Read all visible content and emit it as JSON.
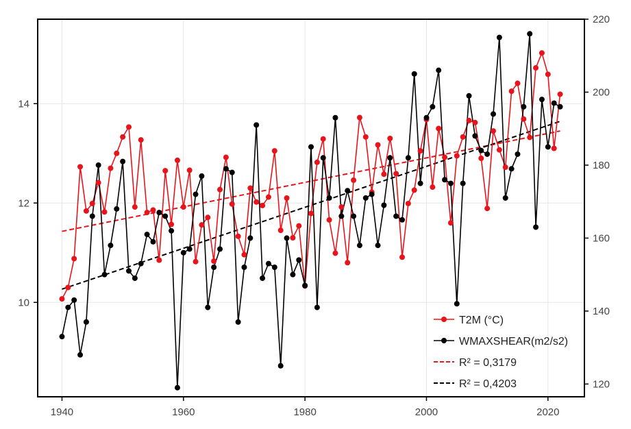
{
  "chart_data": {
    "type": "line",
    "title": "",
    "xlabel": "",
    "ylabel_left": "",
    "ylabel_right": "",
    "xlim": [
      1936,
      2026
    ],
    "ylim_left": [
      8.1,
      15.7
    ],
    "ylim_right": [
      116.5,
      220
    ],
    "x_ticks": [
      "1940",
      "1960",
      "1980",
      "2000",
      "2020"
    ],
    "y_left_ticks": [
      "10",
      "12",
      "14"
    ],
    "y_right_ticks": [
      "120",
      "140",
      "160",
      "180",
      "200",
      "220"
    ],
    "grid": true,
    "legend_position": "bottom-right",
    "series": [
      {
        "name": "T2M (°C)",
        "axis": "left",
        "color": "#e8141b",
        "x": [
          1940,
          1941,
          1942,
          1943,
          1944,
          1945,
          1946,
          1947,
          1948,
          1949,
          1950,
          1951,
          1952,
          1953,
          1954,
          1955,
          1956,
          1957,
          1958,
          1959,
          1960,
          1961,
          1962,
          1963,
          1964,
          1965,
          1966,
          1967,
          1968,
          1969,
          1970,
          1971,
          1972,
          1973,
          1974,
          1975,
          1976,
          1977,
          1978,
          1979,
          1980,
          1981,
          1982,
          1983,
          1984,
          1985,
          1986,
          1987,
          1988,
          1989,
          1990,
          1991,
          1992,
          1993,
          1994,
          1995,
          1996,
          1997,
          1998,
          1999,
          2000,
          2001,
          2002,
          2003,
          2004,
          2005,
          2006,
          2007,
          2008,
          2009,
          2010,
          2011,
          2012,
          2013,
          2014,
          2015,
          2016,
          2017,
          2018,
          2019,
          2020,
          2021,
          2022
        ],
        "values": [
          10.07,
          10.3,
          10.88,
          12.73,
          11.84,
          11.99,
          12.41,
          11.82,
          12.7,
          13.0,
          13.33,
          13.53,
          11.92,
          13.27,
          11.81,
          11.86,
          10.85,
          12.65,
          11.57,
          12.86,
          11.92,
          12.66,
          10.82,
          11.56,
          11.71,
          10.83,
          12.27,
          12.92,
          11.98,
          11.33,
          10.96,
          12.3,
          12.02,
          11.95,
          12.12,
          13.05,
          11.45,
          12.1,
          11.3,
          11.54,
          10.33,
          11.79,
          12.82,
          13.29,
          11.66,
          10.99,
          11.92,
          10.8,
          12.46,
          13.72,
          13.33,
          12.22,
          13.17,
          12.58,
          13.3,
          12.59,
          10.91,
          11.99,
          12.26,
          13.05,
          13.68,
          12.32,
          13.5,
          12.92,
          11.6,
          12.95,
          13.33,
          13.66,
          13.62,
          12.9,
          11.89,
          13.45,
          13.07,
          12.72,
          14.25,
          14.41,
          13.69,
          13.32,
          14.72,
          15.02,
          14.59,
          13.1,
          14.19
        ]
      },
      {
        "name": "WMAXSHEAR(m2/s2)",
        "axis": "right",
        "color": "#000000",
        "x": [
          1940,
          1941,
          1942,
          1943,
          1944,
          1945,
          1946,
          1947,
          1948,
          1949,
          1950,
          1951,
          1952,
          1953,
          1954,
          1955,
          1956,
          1957,
          1958,
          1959,
          1960,
          1961,
          1962,
          1963,
          1964,
          1965,
          1966,
          1967,
          1968,
          1969,
          1970,
          1971,
          1972,
          1973,
          1974,
          1975,
          1976,
          1977,
          1978,
          1979,
          1980,
          1981,
          1982,
          1983,
          1984,
          1985,
          1986,
          1987,
          1988,
          1989,
          1990,
          1991,
          1992,
          1993,
          1994,
          1995,
          1996,
          1997,
          1998,
          1999,
          2000,
          2001,
          2002,
          2003,
          2004,
          2005,
          2006,
          2007,
          2008,
          2009,
          2010,
          2011,
          2012,
          2013,
          2014,
          2015,
          2016,
          2017,
          2018,
          2019,
          2020,
          2021,
          2022
        ],
        "values": [
          133,
          141,
          143,
          128,
          137,
          166,
          180,
          150,
          158,
          168,
          181,
          151,
          149,
          153,
          161,
          159,
          167,
          166,
          162,
          119,
          156,
          157,
          172,
          177,
          141,
          152,
          157,
          179,
          178,
          137,
          152,
          160,
          191,
          149,
          153,
          152,
          125,
          160,
          150,
          154,
          147,
          185,
          141,
          182,
          171,
          193,
          166,
          173,
          166,
          158,
          171,
          172,
          158,
          169,
          182,
          166,
          165,
          182,
          205,
          175,
          193,
          196,
          206,
          176,
          175,
          142,
          175,
          199,
          188,
          184,
          183,
          194,
          215,
          171,
          179,
          183,
          196,
          216,
          163,
          198,
          185,
          197,
          196
        ]
      },
      {
        "name": "R² = 0,3179",
        "axis": "left",
        "type": "trend",
        "color": "#e8141b",
        "x": [
          1940,
          2022
        ],
        "values": [
          11.43,
          13.45
        ]
      },
      {
        "name": "R² = 0,4203",
        "axis": "right",
        "type": "trend",
        "color": "#000000",
        "x": [
          1940,
          2022
        ],
        "values": [
          146,
          192
        ]
      }
    ]
  }
}
